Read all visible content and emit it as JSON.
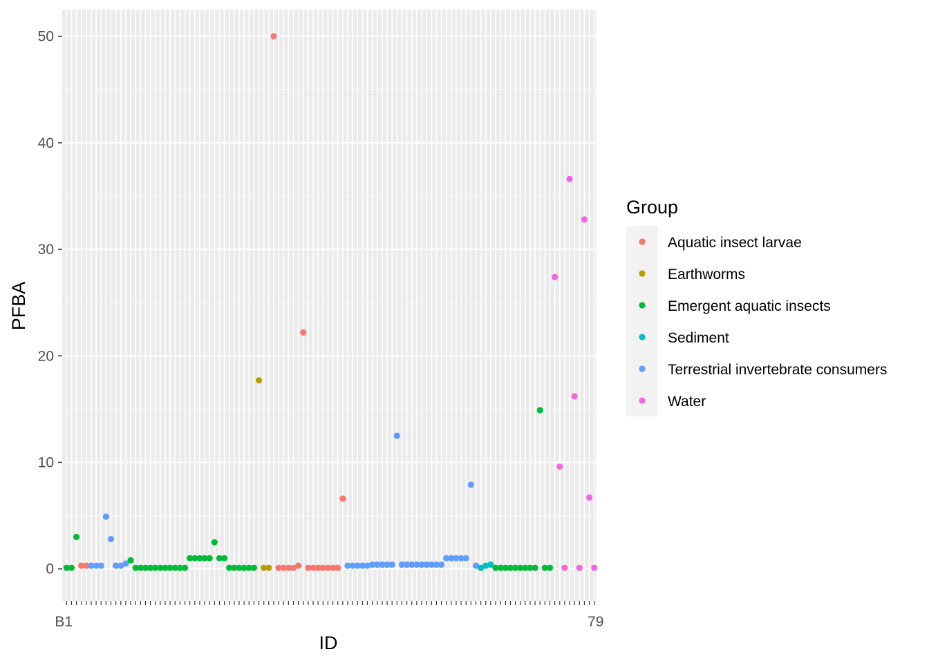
{
  "chart_data": {
    "type": "scatter",
    "xlabel": "ID",
    "ylabel": "PFBA",
    "ylim": [
      -3,
      52.5
    ],
    "y_ticks": [
      0,
      10,
      20,
      30,
      40,
      50
    ],
    "grid": true,
    "legend_position": "right",
    "legend_title": "Group",
    "groups": [
      {
        "name": "Aquatic insect larvae",
        "color": "#F8766D"
      },
      {
        "name": "Earthworms",
        "color": "#B79F00"
      },
      {
        "name": "Emergent aquatic insects",
        "color": "#00BA38"
      },
      {
        "name": "Sediment",
        "color": "#00BFC4"
      },
      {
        "name": "Terrestrial invertebrate consumers",
        "color": "#619CFF"
      },
      {
        "name": "Water",
        "color": "#F564E3"
      }
    ],
    "x_tick_labels_visible": [
      "B1",
      "79"
    ],
    "points": [
      {
        "i": 1,
        "y": 0.1,
        "g": 2
      },
      {
        "i": 2,
        "y": 0.1,
        "g": 2
      },
      {
        "i": 3,
        "y": 3.0,
        "g": 2
      },
      {
        "i": 4,
        "y": 0.3,
        "g": 0
      },
      {
        "i": 5,
        "y": 0.3,
        "g": 0
      },
      {
        "i": 6,
        "y": 0.3,
        "g": 4
      },
      {
        "i": 7,
        "y": 0.3,
        "g": 4
      },
      {
        "i": 8,
        "y": 0.3,
        "g": 4
      },
      {
        "i": 9,
        "y": 4.9,
        "g": 4
      },
      {
        "i": 10,
        "y": 2.8,
        "g": 4
      },
      {
        "i": 11,
        "y": 0.3,
        "g": 4
      },
      {
        "i": 12,
        "y": 0.3,
        "g": 4
      },
      {
        "i": 13,
        "y": 0.5,
        "g": 4
      },
      {
        "i": 14,
        "y": 0.8,
        "g": 2
      },
      {
        "i": 15,
        "y": 0.1,
        "g": 2
      },
      {
        "i": 16,
        "y": 0.1,
        "g": 2
      },
      {
        "i": 17,
        "y": 0.1,
        "g": 2
      },
      {
        "i": 18,
        "y": 0.1,
        "g": 2
      },
      {
        "i": 19,
        "y": 0.1,
        "g": 2
      },
      {
        "i": 20,
        "y": 0.1,
        "g": 2
      },
      {
        "i": 21,
        "y": 0.1,
        "g": 2
      },
      {
        "i": 22,
        "y": 0.1,
        "g": 2
      },
      {
        "i": 23,
        "y": 0.1,
        "g": 2
      },
      {
        "i": 24,
        "y": 0.1,
        "g": 2
      },
      {
        "i": 25,
        "y": 0.1,
        "g": 2
      },
      {
        "i": 26,
        "y": 1.0,
        "g": 2
      },
      {
        "i": 27,
        "y": 1.0,
        "g": 2
      },
      {
        "i": 28,
        "y": 1.0,
        "g": 2
      },
      {
        "i": 29,
        "y": 1.0,
        "g": 2
      },
      {
        "i": 30,
        "y": 1.0,
        "g": 2
      },
      {
        "i": 31,
        "y": 2.5,
        "g": 2
      },
      {
        "i": 32,
        "y": 1.0,
        "g": 2
      },
      {
        "i": 33,
        "y": 1.0,
        "g": 2
      },
      {
        "i": 34,
        "y": 0.1,
        "g": 2
      },
      {
        "i": 35,
        "y": 0.1,
        "g": 2
      },
      {
        "i": 36,
        "y": 0.1,
        "g": 2
      },
      {
        "i": 37,
        "y": 0.1,
        "g": 2
      },
      {
        "i": 38,
        "y": 0.1,
        "g": 2
      },
      {
        "i": 39,
        "y": 0.1,
        "g": 2
      },
      {
        "i": 40,
        "y": 17.7,
        "g": 1
      },
      {
        "i": 41,
        "y": 0.1,
        "g": 1
      },
      {
        "i": 42,
        "y": 0.1,
        "g": 1
      },
      {
        "i": 43,
        "y": 50.0,
        "g": 0
      },
      {
        "i": 44,
        "y": 0.1,
        "g": 0
      },
      {
        "i": 45,
        "y": 0.1,
        "g": 0
      },
      {
        "i": 46,
        "y": 0.1,
        "g": 0
      },
      {
        "i": 47,
        "y": 0.1,
        "g": 0
      },
      {
        "i": 48,
        "y": 0.3,
        "g": 0
      },
      {
        "i": 49,
        "y": 22.2,
        "g": 0
      },
      {
        "i": 50,
        "y": 0.1,
        "g": 0
      },
      {
        "i": 51,
        "y": 0.1,
        "g": 0
      },
      {
        "i": 52,
        "y": 0.1,
        "g": 0
      },
      {
        "i": 53,
        "y": 0.1,
        "g": 0
      },
      {
        "i": 54,
        "y": 0.1,
        "g": 0
      },
      {
        "i": 55,
        "y": 0.1,
        "g": 0
      },
      {
        "i": 56,
        "y": 0.1,
        "g": 0
      },
      {
        "i": 57,
        "y": 6.6,
        "g": 0
      },
      {
        "i": 58,
        "y": 0.3,
        "g": 4
      },
      {
        "i": 59,
        "y": 0.3,
        "g": 4
      },
      {
        "i": 60,
        "y": 0.3,
        "g": 4
      },
      {
        "i": 61,
        "y": 0.3,
        "g": 4
      },
      {
        "i": 62,
        "y": 0.3,
        "g": 4
      },
      {
        "i": 63,
        "y": 0.4,
        "g": 4
      },
      {
        "i": 64,
        "y": 0.4,
        "g": 4
      },
      {
        "i": 65,
        "y": 0.4,
        "g": 4
      },
      {
        "i": 66,
        "y": 0.4,
        "g": 4
      },
      {
        "i": 67,
        "y": 0.4,
        "g": 4
      },
      {
        "i": 68,
        "y": 12.5,
        "g": 4
      },
      {
        "i": 69,
        "y": 0.4,
        "g": 4
      },
      {
        "i": 70,
        "y": 0.4,
        "g": 4
      },
      {
        "i": 71,
        "y": 0.4,
        "g": 4
      },
      {
        "i": 72,
        "y": 0.4,
        "g": 4
      },
      {
        "i": 73,
        "y": 0.4,
        "g": 4
      },
      {
        "i": 74,
        "y": 0.4,
        "g": 4
      },
      {
        "i": 75,
        "y": 0.4,
        "g": 4
      },
      {
        "i": 76,
        "y": 0.4,
        "g": 4
      },
      {
        "i": 77,
        "y": 0.4,
        "g": 4
      },
      {
        "i": 78,
        "y": 1.0,
        "g": 4
      },
      {
        "i": 79,
        "y": 1.0,
        "g": 4
      },
      {
        "i": 80,
        "y": 1.0,
        "g": 4
      },
      {
        "i": 81,
        "y": 1.0,
        "g": 4
      },
      {
        "i": 82,
        "y": 1.0,
        "g": 4
      },
      {
        "i": 83,
        "y": 7.9,
        "g": 4
      },
      {
        "i": 84,
        "y": 0.3,
        "g": 4
      },
      {
        "i": 85,
        "y": 0.1,
        "g": 3
      },
      {
        "i": 86,
        "y": 0.3,
        "g": 3
      },
      {
        "i": 87,
        "y": 0.4,
        "g": 3
      },
      {
        "i": 88,
        "y": 0.1,
        "g": 2
      },
      {
        "i": 89,
        "y": 0.1,
        "g": 2
      },
      {
        "i": 90,
        "y": 0.1,
        "g": 2
      },
      {
        "i": 91,
        "y": 0.1,
        "g": 2
      },
      {
        "i": 92,
        "y": 0.1,
        "g": 2
      },
      {
        "i": 93,
        "y": 0.1,
        "g": 2
      },
      {
        "i": 94,
        "y": 0.1,
        "g": 2
      },
      {
        "i": 95,
        "y": 0.1,
        "g": 2
      },
      {
        "i": 96,
        "y": 0.1,
        "g": 2
      },
      {
        "i": 97,
        "y": 14.9,
        "g": 2
      },
      {
        "i": 98,
        "y": 0.1,
        "g": 2
      },
      {
        "i": 99,
        "y": 0.1,
        "g": 2
      },
      {
        "i": 100,
        "y": 27.4,
        "g": 5
      },
      {
        "i": 101,
        "y": 9.6,
        "g": 5
      },
      {
        "i": 102,
        "y": 0.1,
        "g": 5
      },
      {
        "i": 103,
        "y": 36.6,
        "g": 5
      },
      {
        "i": 104,
        "y": 16.2,
        "g": 5
      },
      {
        "i": 105,
        "y": 0.1,
        "g": 5
      },
      {
        "i": 106,
        "y": 32.8,
        "g": 5
      },
      {
        "i": 107,
        "y": 6.7,
        "g": 5
      },
      {
        "i": 108,
        "y": 0.1,
        "g": 5
      }
    ]
  }
}
